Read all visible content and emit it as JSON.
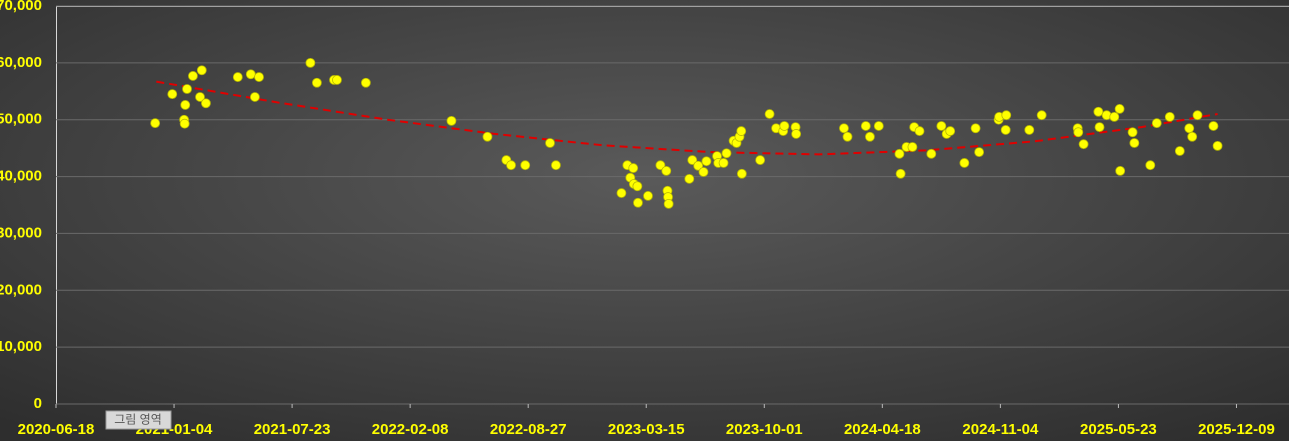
{
  "chart_data": {
    "type": "scatter",
    "x": [
      "2020-12-03",
      "2021-01-01",
      "2021-01-21",
      "2021-01-22",
      "2021-01-23",
      "2021-01-26",
      "2021-02-05",
      "2021-02-17",
      "2021-02-20",
      "2021-02-27",
      "2021-04-22",
      "2021-05-14",
      "2021-05-21",
      "2021-05-28",
      "2021-08-23",
      "2021-09-03",
      "2021-10-02",
      "2021-10-07",
      "2021-11-25",
      "2022-04-19",
      "2022-06-19",
      "2022-07-21",
      "2022-07-29",
      "2022-08-22",
      "2022-10-03",
      "2022-10-13",
      "2023-02-01",
      "2023-02-11",
      "2023-02-16",
      "2023-02-21",
      "2023-02-22",
      "2023-02-28",
      "2023-03-01",
      "2023-03-18",
      "2023-04-08",
      "2023-04-18",
      "2023-04-20",
      "2023-04-21",
      "2023-04-22",
      "2023-05-27",
      "2023-06-01",
      "2023-06-11",
      "2023-06-20",
      "2023-06-25",
      "2023-07-13",
      "2023-07-15",
      "2023-07-24",
      "2023-07-29",
      "2023-08-10",
      "2023-08-15",
      "2023-08-20",
      "2023-08-23",
      "2023-08-24",
      "2023-09-24",
      "2023-10-10",
      "2023-10-21",
      "2023-11-02",
      "2023-11-04",
      "2023-11-23",
      "2023-11-24",
      "2024-02-13",
      "2024-02-19",
      "2024-03-21",
      "2024-03-28",
      "2024-04-12",
      "2024-05-17",
      "2024-05-19",
      "2024-05-29",
      "2024-06-08",
      "2024-06-11",
      "2024-06-20",
      "2024-07-10",
      "2024-07-27",
      "2024-08-05",
      "2024-08-11",
      "2024-09-04",
      "2024-09-23",
      "2024-09-29",
      "2024-11-01",
      "2024-11-02",
      "2024-11-14",
      "2024-11-13",
      "2024-12-23",
      "2025-01-13",
      "2025-03-15",
      "2025-03-16",
      "2025-03-25",
      "2025-04-19",
      "2025-04-21",
      "2025-05-03",
      "2025-05-16",
      "2025-05-25",
      "2025-05-26",
      "2025-06-16",
      "2025-06-19",
      "2025-07-16",
      "2025-07-27",
      "2025-08-18",
      "2025-09-04",
      "2025-09-20",
      "2025-09-25",
      "2025-10-04",
      "2025-10-31",
      "2025-11-07"
    ],
    "values": [
      49400,
      54500,
      50000,
      49300,
      52600,
      55400,
      57700,
      54000,
      58700,
      52900,
      57500,
      58000,
      54000,
      57500,
      60000,
      56500,
      57000,
      57000,
      56500,
      49800,
      47000,
      42900,
      42000,
      42000,
      45900,
      42000,
      37100,
      42000,
      39800,
      41500,
      38700,
      38300,
      35400,
      36600,
      42000,
      41000,
      37500,
      36400,
      35200,
      39600,
      42900,
      41900,
      40800,
      42700,
      43600,
      42400,
      42400,
      44100,
      46300,
      45900,
      47000,
      48000,
      40500,
      42900,
      51000,
      48500,
      48000,
      48900,
      48700,
      47500,
      48500,
      47000,
      48900,
      47000,
      48900,
      44000,
      40500,
      45200,
      45200,
      48700,
      48000,
      44000,
      48900,
      47500,
      48000,
      42400,
      48500,
      44300,
      50000,
      50500,
      50800,
      48200,
      48200,
      50800,
      48500,
      47800,
      45700,
      51400,
      48700,
      50800,
      50500,
      51900,
      41000,
      47800,
      45900,
      42000,
      49400,
      50500,
      44500,
      48500,
      47000,
      50800,
      48900,
      45400
    ],
    "color": "#ffff00",
    "trendline": {
      "color": "#e00000",
      "x": [
        "2020-12-05",
        "2021-07-01",
        "2022-01-01",
        "2022-07-01",
        "2023-01-01",
        "2023-07-01",
        "2024-01-01",
        "2024-07-01",
        "2025-01-01",
        "2025-07-01",
        "2025-11-07"
      ],
      "values": [
        56700,
        53000,
        50000,
        47500,
        45500,
        44300,
        43900,
        44600,
        46200,
        48700,
        51000
      ]
    },
    "xlim": [
      "2020-06-18",
      "2026-03-08"
    ],
    "xticks": [
      "2020-06-18",
      "2021-01-04",
      "2021-07-23",
      "2022-02-08",
      "2022-08-27",
      "2023-03-15",
      "2023-10-01",
      "2024-04-18",
      "2024-11-04",
      "2025-05-23",
      "2025-12-09"
    ],
    "ylim": [
      0,
      70000
    ],
    "yticks": [
      0,
      {
        "value": 10000,
        "label": "10,000"
      },
      {
        "value": 20000,
        "label": "20,000"
      },
      {
        "value": 30000,
        "label": "30,000"
      },
      {
        "value": 40000,
        "label": "40,000"
      },
      {
        "value": 50000,
        "label": "50,000"
      },
      {
        "value": 60000,
        "label": "60,000"
      },
      {
        "value": 70000,
        "label": "70,000"
      }
    ],
    "grid": true,
    "tooltip": "그림 영역"
  }
}
